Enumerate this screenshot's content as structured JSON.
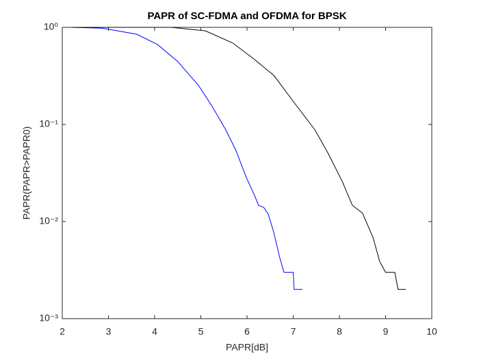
{
  "chart_data": {
    "type": "line",
    "title": "PAPR of SC-FDMA and OFDMA for BPSK",
    "x_label": "PAPR[dB]",
    "y_label": "PAPR(PAPR>PAPR0)",
    "y_scale": "log",
    "xlim": [
      2,
      10
    ],
    "xticks": [
      2,
      3,
      4,
      5,
      6,
      7,
      8,
      9,
      10
    ],
    "ylim": [
      0.001,
      1
    ],
    "yticks": [
      {
        "value": 0.001,
        "label": "10⁻³"
      },
      {
        "value": 0.01,
        "label": "10⁻²"
      },
      {
        "value": 0.1,
        "label": "10⁻¹"
      },
      {
        "value": 1,
        "label": "10⁰"
      }
    ],
    "series": [
      {
        "color": "#0000ff",
        "x": [
          2.2,
          2.87,
          3.61,
          4.06,
          4.5,
          4.95,
          5.24,
          5.54,
          5.76,
          5.99,
          6.16,
          6.25,
          6.36,
          6.46,
          6.58,
          6.7,
          6.8,
          7.0,
          7.02,
          7.2
        ],
        "values": [
          1.0,
          0.98,
          0.85,
          0.667,
          0.445,
          0.252,
          0.155,
          0.088,
          0.054,
          0.028,
          0.0187,
          0.0147,
          0.014,
          0.0119,
          0.0077,
          0.0044,
          0.003,
          0.003,
          0.002,
          0.002
        ]
      },
      {
        "color": "#000000",
        "x": [
          2.2,
          4.36,
          5.1,
          5.69,
          6.13,
          6.58,
          7.02,
          7.47,
          7.76,
          8.06,
          8.28,
          8.5,
          8.73,
          8.87,
          9.0,
          9.2,
          9.27,
          9.44
        ],
        "values": [
          1.0,
          1.0,
          0.92,
          0.69,
          0.48,
          0.32,
          0.168,
          0.088,
          0.05,
          0.026,
          0.0147,
          0.0122,
          0.0068,
          0.0039,
          0.003,
          0.003,
          0.002,
          0.002
        ]
      }
    ]
  }
}
